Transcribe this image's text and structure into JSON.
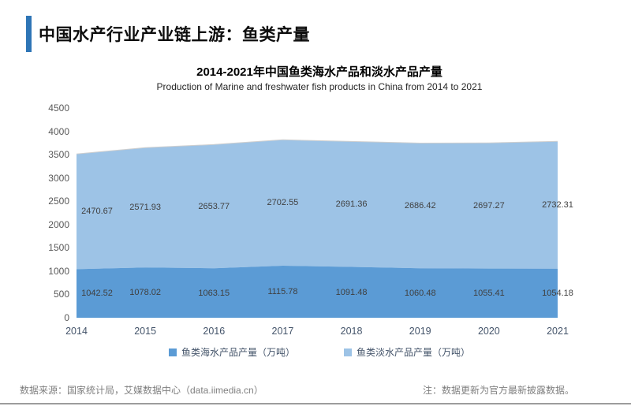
{
  "header": {
    "title": "中国水产行业产业链上游：鱼类产量",
    "accent_color": "#2E75B6"
  },
  "chart_data": {
    "type": "area",
    "stacked": true,
    "title": "2014-2021年中国鱼类海水产品和淡水产品产量",
    "subtitle": "Production of Marine and freshwater fish products in China from 2014 to 2021",
    "categories": [
      "2014",
      "2015",
      "2016",
      "2017",
      "2018",
      "2019",
      "2020",
      "2021"
    ],
    "series": [
      {
        "name": "鱼类海水产品产量（万吨）",
        "color": "#5B9BD5",
        "values": [
          1042.52,
          1078.02,
          1063.15,
          1115.78,
          1091.48,
          1060.48,
          1055.41,
          1054.18
        ]
      },
      {
        "name": "鱼类淡水产品产量（万吨）",
        "color": "#9DC3E6",
        "values": [
          2470.67,
          2571.93,
          2653.77,
          2702.55,
          2691.36,
          2686.42,
          2697.27,
          2732.31
        ]
      }
    ],
    "ylabel": "",
    "xlabel": "",
    "ylim": [
      0,
      4500
    ],
    "ytick_step": 500,
    "grid": false,
    "legend_position": "bottom",
    "data_labels": true,
    "area_edge_color": "#cfcfcf"
  },
  "footer": {
    "source": "数据来源：国家统计局，艾媒数据中心（data.iimedia.cn）",
    "note": "注：数据更新为官方最新披露数据。"
  }
}
